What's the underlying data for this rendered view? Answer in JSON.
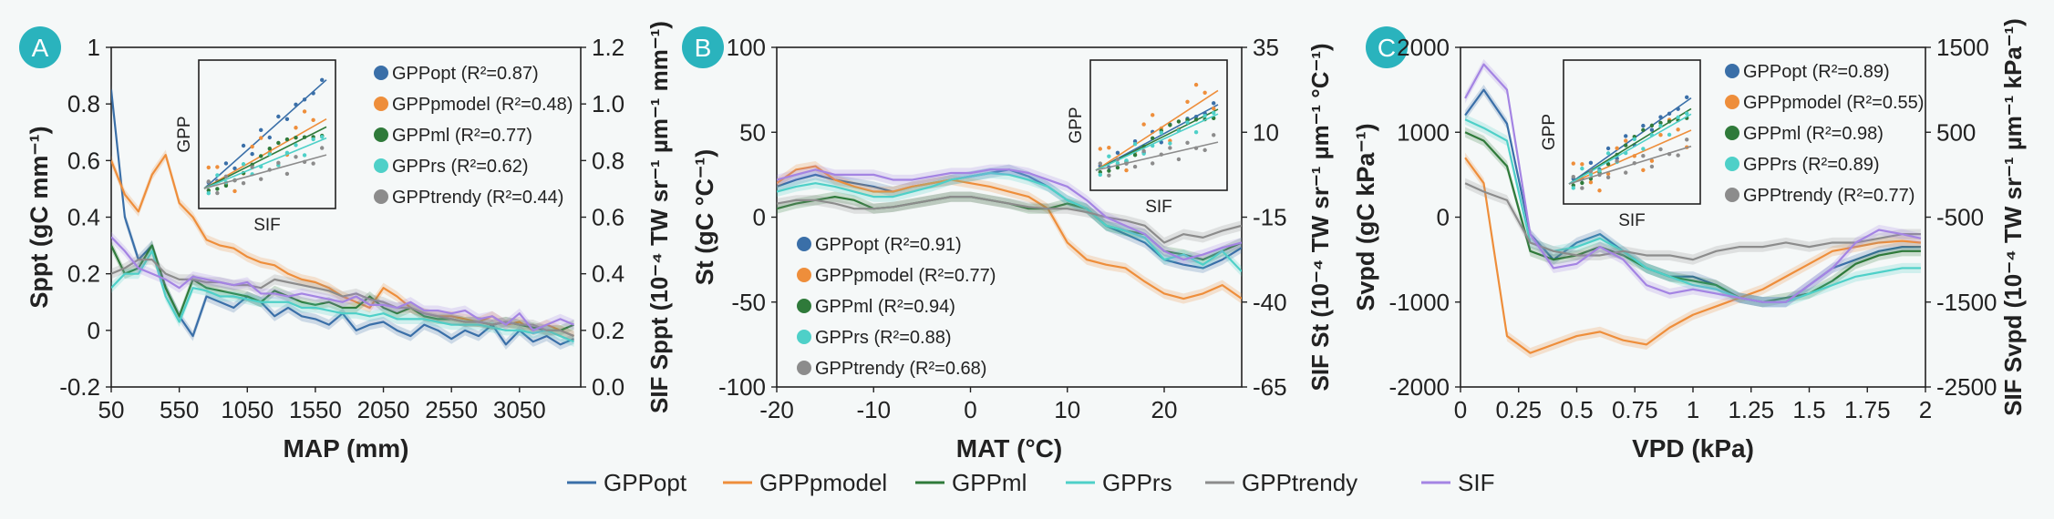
{
  "colors": {
    "GPPopt": "#3a6fa8",
    "GPPpmodel": "#ee8e3b",
    "GPPml": "#2f7a3a",
    "GPPrs": "#4ed0c8",
    "GPPtrendy": "#8c8c8c",
    "SIF": "#a484e3"
  },
  "badge_color": "#2ab3bd",
  "bottom_legend": [
    {
      "key": "GPPopt",
      "label": "GPPopt"
    },
    {
      "key": "GPPpmodel",
      "label": "GPPpmodel"
    },
    {
      "key": "GPPml",
      "label": "GPPml"
    },
    {
      "key": "GPPrs",
      "label": "GPPrs"
    },
    {
      "key": "GPPtrendy",
      "label": "GPPtrendy"
    },
    {
      "key": "SIF",
      "label": "SIF"
    }
  ],
  "chart_data": [
    {
      "panel": "A",
      "type": "line",
      "xlabel": "MAP (mm)",
      "ylabel": "Sppt (gC mm⁻¹)",
      "y2label": "SIF Sppt (10⁻⁴ TW sr⁻¹ µm⁻¹ mm⁻¹)",
      "xticks": [
        "50",
        "550",
        "1050",
        "1550",
        "2050",
        "2550",
        "3050"
      ],
      "xtick_values": [
        50,
        550,
        1050,
        1550,
        2050,
        2550,
        3050
      ],
      "xlim": [
        50,
        3500
      ],
      "ylim": [
        -0.2,
        1.0
      ],
      "yticks": [
        -0.2,
        0,
        0.2,
        0.4,
        0.6,
        0.8,
        1
      ],
      "yticklabels": [
        "-0.2",
        "0",
        "0.2",
        "0.4",
        "0.6",
        "0.8",
        "1"
      ],
      "y2lim": [
        0.0,
        1.2
      ],
      "y2ticklabels": [
        "0.0",
        "0.2",
        "0.4",
        "0.6",
        "0.8",
        "1.0",
        "1.2"
      ],
      "legend_position": "top-right",
      "legend": [
        {
          "key": "GPPopt",
          "label": "GPPopt (R²=0.87)"
        },
        {
          "key": "GPPpmodel",
          "label": "GPPpmodel (R²=0.48)"
        },
        {
          "key": "GPPml",
          "label": "GPPml (R²=0.77)"
        },
        {
          "key": "GPPrs",
          "label": "GPPrs (R²=0.62)"
        },
        {
          "key": "GPPtrendy",
          "label": "GPPtrendy (R²=0.44)"
        }
      ],
      "inset": {
        "xlabel": "SIF",
        "ylabel": "GPP",
        "fit_slopes": [
          0.97,
          0.62,
          0.55,
          0.45,
          0.3
        ]
      },
      "x": [
        50,
        150,
        250,
        350,
        450,
        550,
        650,
        750,
        850,
        950,
        1050,
        1150,
        1250,
        1350,
        1450,
        1550,
        1650,
        1750,
        1850,
        1950,
        2050,
        2150,
        2250,
        2350,
        2450,
        2550,
        2650,
        2750,
        2850,
        2950,
        3050,
        3150,
        3250,
        3350,
        3450
      ],
      "series": [
        {
          "name": "GPPopt",
          "values": [
            0.85,
            0.4,
            0.25,
            0.3,
            0.15,
            0.05,
            -0.02,
            0.12,
            0.1,
            0.08,
            0.12,
            0.1,
            0.05,
            0.08,
            0.05,
            0.04,
            0.02,
            0.06,
            0.0,
            0.02,
            0.03,
            0.0,
            -0.02,
            0.02,
            0.0,
            -0.03,
            0.0,
            -0.02,
            0.02,
            -0.05,
            0.0,
            -0.04,
            -0.02,
            -0.05,
            -0.03
          ]
        },
        {
          "name": "GPPpmodel",
          "values": [
            0.6,
            0.48,
            0.42,
            0.55,
            0.62,
            0.45,
            0.4,
            0.32,
            0.3,
            0.29,
            0.26,
            0.24,
            0.23,
            0.2,
            0.18,
            0.17,
            0.15,
            0.12,
            0.1,
            0.08,
            0.15,
            0.12,
            0.08,
            0.06,
            0.05,
            0.05,
            0.04,
            0.03,
            0.05,
            0.02,
            0.03,
            0.0,
            0.02,
            0.0,
            -0.02
          ]
        },
        {
          "name": "GPPml",
          "values": [
            0.3,
            0.2,
            0.22,
            0.3,
            0.15,
            0.05,
            0.18,
            0.15,
            0.14,
            0.13,
            0.12,
            0.1,
            0.14,
            0.12,
            0.1,
            0.09,
            0.1,
            0.08,
            0.08,
            0.12,
            0.08,
            0.06,
            0.08,
            0.05,
            0.04,
            0.04,
            0.03,
            0.03,
            0.02,
            0.03,
            0.02,
            0.01,
            0.0,
            0.0,
            0.02
          ]
        },
        {
          "name": "GPPrs",
          "values": [
            0.15,
            0.2,
            0.2,
            0.28,
            0.12,
            0.03,
            0.15,
            0.14,
            0.12,
            0.12,
            0.11,
            0.1,
            0.1,
            0.1,
            0.08,
            0.08,
            0.07,
            0.06,
            0.06,
            0.05,
            0.06,
            0.04,
            0.04,
            0.04,
            0.03,
            0.02,
            0.02,
            0.02,
            0.01,
            0.0,
            0.0,
            -0.01,
            0.0,
            -0.02,
            -0.04
          ]
        },
        {
          "name": "GPPtrendy",
          "values": [
            0.2,
            0.22,
            0.25,
            0.25,
            0.2,
            0.18,
            0.18,
            0.17,
            0.17,
            0.16,
            0.16,
            0.15,
            0.18,
            0.17,
            0.16,
            0.15,
            0.14,
            0.12,
            0.13,
            0.11,
            0.1,
            0.08,
            0.08,
            0.06,
            0.05,
            0.04,
            0.03,
            0.03,
            0.02,
            0.03,
            0.02,
            0.02,
            0.0,
            0.0,
            -0.02
          ]
        },
        {
          "name": "SIF",
          "values": [
            0.33,
            0.28,
            0.22,
            0.2,
            0.18,
            0.15,
            0.19,
            0.18,
            0.17,
            0.16,
            0.17,
            0.13,
            0.13,
            0.12,
            0.13,
            0.12,
            0.11,
            0.1,
            0.12,
            0.09,
            0.09,
            0.08,
            0.1,
            0.07,
            0.07,
            0.06,
            0.07,
            0.04,
            0.05,
            0.02,
            0.06,
            0.0,
            0.02,
            0.04,
            0.02
          ]
        }
      ]
    },
    {
      "panel": "B",
      "type": "line",
      "xlabel": "MAT (°C)",
      "ylabel": "St (gC °C⁻¹)",
      "y2label": "SIF St (10⁻⁴ TW sr⁻¹ µm⁻¹ °C⁻¹)",
      "xticks": [
        "-20",
        "-10",
        "0",
        "10",
        "20"
      ],
      "xtick_values": [
        -20,
        -10,
        0,
        10,
        20
      ],
      "xlim": [
        -20,
        28
      ],
      "ylim": [
        -100,
        100
      ],
      "yticks": [
        -100,
        -50,
        0,
        50,
        100
      ],
      "yticklabels": [
        "-100",
        "-50",
        "0",
        "50",
        "100"
      ],
      "y2lim": [
        -65,
        35
      ],
      "y2ticklabels": [
        "-65",
        "-40",
        "-15",
        "10",
        "35"
      ],
      "legend_position": "bottom-left",
      "legend": [
        {
          "key": "GPPopt",
          "label": "GPPopt (R²=0.91)"
        },
        {
          "key": "GPPpmodel",
          "label": "GPPpmodel (R²=0.77)"
        },
        {
          "key": "GPPml",
          "label": "GPPml (R²=0.94)"
        },
        {
          "key": "GPPrs",
          "label": "GPPrs (R²=0.88)"
        },
        {
          "key": "GPPtrendy",
          "label": "GPPtrendy (R²=0.68)"
        }
      ],
      "inset": {
        "xlabel": "SIF",
        "ylabel": "GPP",
        "fit_slopes": [
          0.7,
          0.85,
          0.65,
          0.6,
          0.3
        ]
      },
      "x": [
        -20,
        -18,
        -16,
        -14,
        -12,
        -10,
        -8,
        -6,
        -4,
        -2,
        0,
        2,
        4,
        6,
        8,
        10,
        12,
        14,
        16,
        18,
        20,
        22,
        24,
        26,
        28
      ],
      "series": [
        {
          "name": "GPPopt",
          "values": [
            18,
            22,
            25,
            22,
            20,
            18,
            15,
            18,
            20,
            22,
            24,
            26,
            28,
            24,
            18,
            10,
            5,
            -5,
            -10,
            -15,
            -25,
            -28,
            -30,
            -25,
            -18
          ]
        },
        {
          "name": "GPPpmodel",
          "values": [
            20,
            28,
            30,
            22,
            18,
            15,
            15,
            18,
            20,
            22,
            20,
            18,
            15,
            12,
            5,
            -15,
            -25,
            -28,
            -30,
            -38,
            -45,
            -48,
            -45,
            -40,
            -48
          ]
        },
        {
          "name": "GPPml",
          "values": [
            5,
            8,
            10,
            12,
            10,
            5,
            6,
            8,
            10,
            12,
            12,
            10,
            8,
            5,
            5,
            8,
            5,
            -5,
            -8,
            -10,
            -20,
            -22,
            -25,
            -20,
            -15
          ]
        },
        {
          "name": "GPPrs",
          "values": [
            15,
            18,
            20,
            18,
            15,
            12,
            12,
            15,
            18,
            22,
            24,
            26,
            25,
            22,
            18,
            10,
            5,
            -5,
            -8,
            -12,
            -25,
            -22,
            -28,
            -20,
            -32
          ]
        },
        {
          "name": "GPPtrendy",
          "values": [
            8,
            10,
            10,
            8,
            5,
            5,
            6,
            8,
            10,
            12,
            12,
            10,
            8,
            6,
            5,
            5,
            3,
            0,
            -2,
            -5,
            -15,
            -10,
            -12,
            -8,
            -5
          ]
        },
        {
          "name": "SIF",
          "values": [
            22,
            25,
            28,
            25,
            25,
            25,
            22,
            22,
            24,
            26,
            26,
            28,
            28,
            26,
            22,
            18,
            10,
            0,
            -5,
            -10,
            -20,
            -25,
            -22,
            -18,
            -15
          ]
        }
      ]
    },
    {
      "panel": "C",
      "type": "line",
      "xlabel": "VPD (kPa)",
      "ylabel": "Svpd (gC kPa⁻¹)",
      "y2label": "SIF Svpd (10⁻⁴ TW sr⁻¹ µm⁻¹ kPa⁻¹)",
      "xticks": [
        "0",
        "0.25",
        "0.5",
        "0.75",
        "1",
        "1.25",
        "1.5",
        "1.75",
        "2"
      ],
      "xtick_values": [
        0,
        0.25,
        0.5,
        0.75,
        1,
        1.25,
        1.5,
        1.75,
        2
      ],
      "xlim": [
        0,
        2
      ],
      "ylim": [
        -2000,
        2000
      ],
      "yticks": [
        -2000,
        -1000,
        0,
        1000,
        2000
      ],
      "yticklabels": [
        "-2000",
        "-1000",
        "0",
        "1000",
        "2000"
      ],
      "y2lim": [
        -2500,
        1500
      ],
      "y2ticklabels": [
        "-2500",
        "-1500",
        "-500",
        "500",
        "1500"
      ],
      "legend_position": "top-right",
      "legend": [
        {
          "key": "GPPopt",
          "label": "GPPopt (R²=0.89)"
        },
        {
          "key": "GPPpmodel",
          "label": "GPPpmodel (R²=0.55)"
        },
        {
          "key": "GPPml",
          "label": "GPPml (R²=0.98)"
        },
        {
          "key": "GPPrs",
          "label": "GPPrs (R²=0.89)"
        },
        {
          "key": "GPPtrendy",
          "label": "GPPtrendy (R²=0.77)"
        }
      ],
      "inset": {
        "xlabel": "SIF",
        "ylabel": "GPP",
        "fit_slopes": [
          0.8,
          0.5,
          0.7,
          0.65,
          0.35
        ]
      },
      "x": [
        0.02,
        0.1,
        0.2,
        0.3,
        0.4,
        0.5,
        0.6,
        0.7,
        0.8,
        0.9,
        1.0,
        1.1,
        1.2,
        1.3,
        1.4,
        1.5,
        1.6,
        1.7,
        1.8,
        1.9,
        1.98
      ],
      "series": [
        {
          "name": "GPPopt",
          "values": [
            1200,
            1500,
            1100,
            -200,
            -500,
            -300,
            -200,
            -400,
            -600,
            -700,
            -700,
            -800,
            -950,
            -1000,
            -1000,
            -800,
            -600,
            -500,
            -400,
            -350,
            -350
          ]
        },
        {
          "name": "GPPpmodel",
          "values": [
            700,
            400,
            -1400,
            -1600,
            -1500,
            -1400,
            -1350,
            -1450,
            -1500,
            -1300,
            -1150,
            -1050,
            -950,
            -850,
            -700,
            -550,
            -400,
            -350,
            -300,
            -280,
            -300
          ]
        },
        {
          "name": "GPPml",
          "values": [
            1000,
            900,
            600,
            -400,
            -500,
            -450,
            -350,
            -450,
            -600,
            -700,
            -750,
            -800,
            -950,
            -1000,
            -950,
            -900,
            -750,
            -550,
            -450,
            -400,
            -400
          ]
        },
        {
          "name": "GPPrs",
          "values": [
            1150,
            1050,
            900,
            -300,
            -400,
            -350,
            -250,
            -400,
            -600,
            -700,
            -800,
            -850,
            -950,
            -1000,
            -1000,
            -900,
            -800,
            -700,
            -650,
            -600,
            -600
          ]
        },
        {
          "name": "GPPtrendy",
          "values": [
            400,
            300,
            200,
            -300,
            -400,
            -450,
            -450,
            -400,
            -450,
            -450,
            -500,
            -400,
            -350,
            -350,
            -300,
            -350,
            -300,
            -300,
            -250,
            -200,
            -200
          ]
        },
        {
          "name": "SIF",
          "values": [
            1400,
            1800,
            1500,
            -200,
            -600,
            -550,
            -350,
            -500,
            -800,
            -900,
            -850,
            -900,
            -950,
            -1000,
            -1000,
            -800,
            -600,
            -300,
            -150,
            -200,
            -250
          ]
        }
      ]
    }
  ]
}
